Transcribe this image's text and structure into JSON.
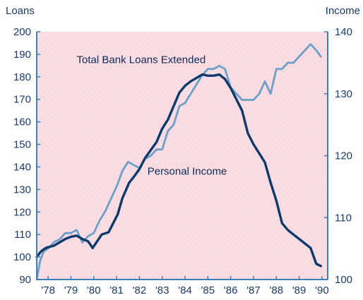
{
  "chart_data": {
    "type": "line",
    "left_axis": {
      "title": "Loans",
      "ylim": [
        90,
        200
      ],
      "ticks": [
        90,
        100,
        110,
        120,
        130,
        140,
        150,
        160,
        170,
        180,
        190,
        200
      ]
    },
    "right_axis": {
      "title": "Income",
      "ylim": [
        100,
        140
      ],
      "ticks": [
        100,
        110,
        120,
        130,
        140
      ]
    },
    "x_axis": {
      "xlim": [
        1977.75,
        1990.5
      ],
      "tick_labels": [
        "'78",
        "'79",
        "'80",
        "'81",
        "'82",
        "'83",
        "'84",
        "'85",
        "'86",
        "'87",
        "'88",
        "'89",
        "'90"
      ],
      "tick_values": [
        1978.25,
        1979.25,
        1980.25,
        1981.25,
        1982.25,
        1983.25,
        1984.25,
        1985.25,
        1986.25,
        1987.25,
        1988.25,
        1989.25,
        1990.25
      ]
    },
    "grid": false,
    "series": [
      {
        "name": "Total Bank Loans Extended",
        "axis": "left",
        "color": "#0d3a6b",
        "x": [
          1977.75,
          1977.9,
          1978.0,
          1978.15,
          1978.3,
          1978.5,
          1978.75,
          1979.0,
          1979.25,
          1979.5,
          1979.75,
          1980.0,
          1980.2,
          1980.4,
          1980.6,
          1980.9,
          1981.1,
          1981.3,
          1981.5,
          1981.8,
          1982.0,
          1982.25,
          1982.5,
          1982.75,
          1983.0,
          1983.25,
          1983.5,
          1983.75,
          1984.0,
          1984.25,
          1984.5,
          1984.75,
          1985.0,
          1985.25,
          1985.5,
          1985.75,
          1986.0,
          1986.25,
          1986.5,
          1986.75,
          1987.0,
          1987.25,
          1987.5,
          1987.75,
          1988.0,
          1988.25,
          1988.5,
          1988.75,
          1989.0,
          1989.25,
          1989.5,
          1989.75,
          1990.0,
          1990.2
        ],
        "values": [
          100,
          102,
          103,
          104,
          104.5,
          105,
          106.5,
          108,
          109,
          109.5,
          108,
          107,
          104,
          107,
          110,
          111,
          115,
          119,
          126,
          133,
          135.5,
          139,
          144,
          147.5,
          151,
          157,
          161,
          167,
          173,
          176,
          178,
          179.5,
          181,
          180.5,
          180.5,
          181,
          179,
          175,
          170,
          165,
          155,
          150,
          146,
          142,
          133,
          125,
          115,
          112,
          110,
          108,
          106,
          104,
          97,
          96
        ]
      },
      {
        "name": "Personal Income",
        "axis": "right",
        "color": "#6d9fc8",
        "x": [
          1977.75,
          1977.9,
          1978.05,
          1978.25,
          1978.5,
          1978.75,
          1979.0,
          1979.25,
          1979.5,
          1979.75,
          1980.0,
          1980.25,
          1980.5,
          1980.75,
          1981.0,
          1981.25,
          1981.5,
          1981.75,
          1982.0,
          1982.25,
          1982.5,
          1982.75,
          1983.0,
          1983.25,
          1983.5,
          1983.75,
          1984.0,
          1984.25,
          1984.5,
          1984.75,
          1985.0,
          1985.25,
          1985.5,
          1985.75,
          1986.0,
          1986.25,
          1986.5,
          1986.75,
          1987.0,
          1987.25,
          1987.5,
          1987.75,
          1988.0,
          1988.25,
          1988.5,
          1988.75,
          1989.0,
          1989.25,
          1989.5,
          1989.75,
          1990.0,
          1990.2
        ],
        "values": [
          100,
          103,
          104.5,
          105,
          106,
          106.5,
          107.5,
          107.5,
          108,
          106,
          107,
          107.5,
          109.5,
          111,
          113,
          115,
          117.5,
          119,
          118.5,
          118,
          119.5,
          120,
          121,
          121,
          124,
          125,
          128,
          128.5,
          130,
          131.5,
          133,
          134,
          134,
          134.5,
          134,
          131,
          130,
          129,
          129,
          129,
          130,
          132,
          130,
          134,
          134,
          135,
          135,
          136,
          137,
          138,
          137,
          136
        ]
      }
    ],
    "annotations": [
      {
        "text": "Total Bank Loans Extended",
        "series": 0
      },
      {
        "text": "Personal Income",
        "series": 1
      }
    ]
  }
}
